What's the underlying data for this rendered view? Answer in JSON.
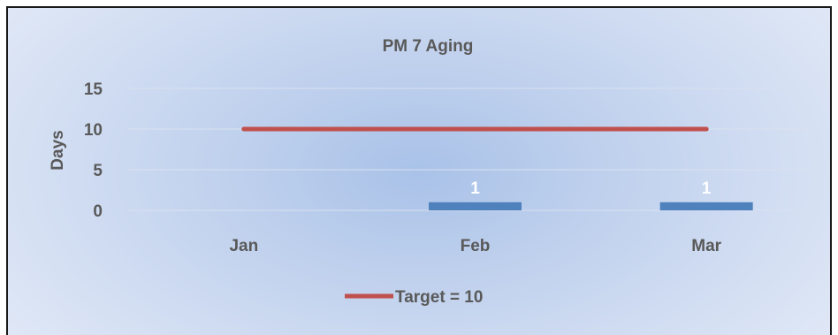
{
  "chart_data": {
    "type": "bar",
    "title": "PM 7 Aging",
    "ylabel": "Days",
    "xlabel": "",
    "categories": [
      "Jan",
      "Feb",
      "Mar"
    ],
    "ylim": [
      0,
      15
    ],
    "yticks": [
      0,
      5,
      10,
      15
    ],
    "grid": true,
    "series": [
      {
        "values": [
          null,
          1,
          1
        ],
        "data_labels": [
          "",
          "1",
          "1"
        ],
        "color": "#4f81bd"
      }
    ],
    "target": {
      "name": "Target = 10",
      "values": [
        10,
        10,
        10
      ],
      "color": "#c0504d"
    },
    "legend": "bottom"
  }
}
